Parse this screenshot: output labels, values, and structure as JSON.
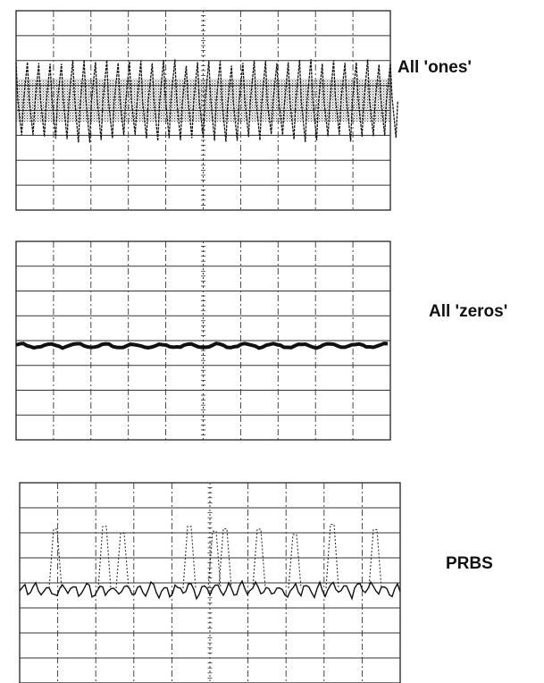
{
  "panels": [
    {
      "label": "All 'ones'"
    },
    {
      "label": "All 'zeros'"
    },
    {
      "label": "PRBS"
    }
  ]
}
